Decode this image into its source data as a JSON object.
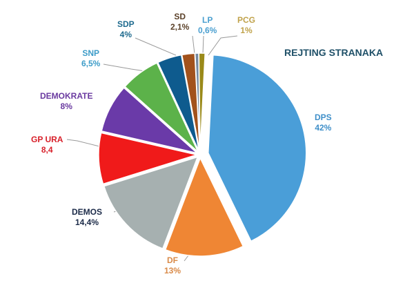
{
  "chart_data": {
    "type": "pie",
    "title": "REJTING STRANAKA",
    "slices": [
      {
        "label": "DPS",
        "value": 42,
        "value_label": "42%",
        "color": "#4a9ed8",
        "label_color": "#3f8fc9"
      },
      {
        "label": "DF",
        "value": 13,
        "value_label": "13%",
        "color": "#ef8634",
        "label_color": "#d98a48"
      },
      {
        "label": "DEMOS",
        "value": 14.4,
        "value_label": "14,4%",
        "color": "#a6b0b0",
        "label_color": "#1b2a48"
      },
      {
        "label": "GP URA",
        "value": 8.4,
        "value_label": "8,4",
        "color": "#f01a1a",
        "label_color": "#d8202a"
      },
      {
        "label": "DEMOKRATE",
        "value": 8,
        "value_label": "8%",
        "color": "#6a3aa8",
        "label_color": "#6a3aa0"
      },
      {
        "label": "SNP",
        "value": 6.5,
        "value_label": "6,5%",
        "color": "#5cb24a",
        "label_color": "#3d9cc8"
      },
      {
        "label": "SDP",
        "value": 4,
        "value_label": "4%",
        "color": "#0e5b8e",
        "label_color": "#1d6a8e"
      },
      {
        "label": "SD",
        "value": 2.1,
        "value_label": "2,1%",
        "color": "#a2521c",
        "label_color": "#5a4028"
      },
      {
        "label": "LP",
        "value": 0.6,
        "value_label": "0,6%",
        "color": "#7489a0",
        "label_color": "#4a9fd0"
      },
      {
        "label": "PCG",
        "value": 1,
        "value_label": "1%",
        "color": "#9a8a1a",
        "label_color": "#c0a24a"
      }
    ]
  }
}
